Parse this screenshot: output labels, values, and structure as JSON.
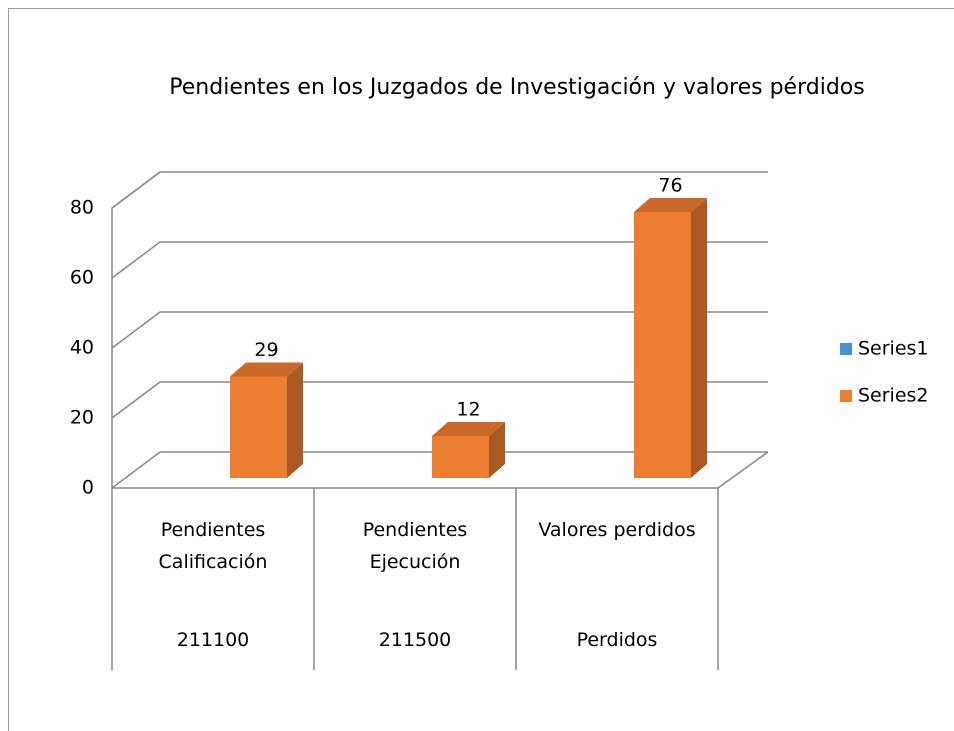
{
  "chart_data": {
    "type": "bar3d",
    "title": "Pendientes en los Juzgados de Investigación y valores pérdidos",
    "categories": [
      "Pendientes Calificación",
      "Pendientes Ejecución",
      "Valores perdidos"
    ],
    "category_groups": [
      "211100",
      "211500",
      "Perdidos"
    ],
    "series": [
      {
        "name": "Series1",
        "color": "#4a90d9",
        "values": [
          null,
          null,
          null
        ]
      },
      {
        "name": "Series2",
        "color": "#ed7d31",
        "values": [
          29,
          12,
          76
        ]
      }
    ],
    "ylim": [
      0,
      80
    ],
    "yticks": [
      0,
      20,
      40,
      60,
      80
    ],
    "grid": true,
    "legend": "right"
  }
}
